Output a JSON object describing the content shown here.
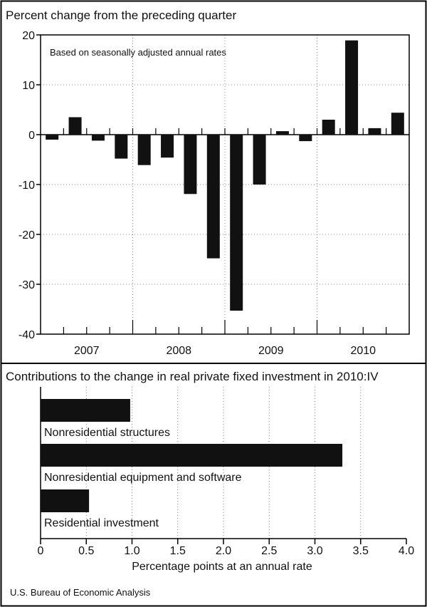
{
  "colors": {
    "bar": "#111111",
    "grid": "#888888",
    "frame": "#000000",
    "background": "#ffffff"
  },
  "source": "U.S. Bureau of Economic Analysis",
  "chart_data": [
    {
      "type": "bar",
      "title": "Percent change from the preceding quarter",
      "annotation": "Based on seasonally adjusted annual rates",
      "xlabel": "",
      "ylabel": "",
      "ylim": [
        -40,
        20
      ],
      "yticks": [
        20,
        10,
        0,
        -10,
        -20,
        -30,
        -40
      ],
      "ytick_labels": [
        "20",
        "10",
        "0",
        "-10",
        "-20",
        "-30",
        "-40"
      ],
      "year_labels": [
        "2007",
        "2008",
        "2009",
        "2010"
      ],
      "categories": [
        "2007:I",
        "2007:II",
        "2007:III",
        "2007:IV",
        "2008:I",
        "2008:II",
        "2008:III",
        "2008:IV",
        "2009:I",
        "2009:II",
        "2009:III",
        "2009:IV",
        "2010:I",
        "2010:II",
        "2010:III",
        "2010:IV"
      ],
      "values": [
        -1.0,
        3.5,
        -1.2,
        -4.8,
        -6.1,
        -4.6,
        -11.9,
        -24.8,
        -35.3,
        -10.0,
        0.7,
        -1.3,
        3.0,
        18.9,
        1.3,
        4.4
      ],
      "grid": true
    },
    {
      "type": "bar",
      "orientation": "horizontal",
      "title": "Contributions to the change in real private fixed investment in 2010:IV",
      "xlabel": "Percentage points at an annual rate",
      "ylabel": "",
      "xlim": [
        0,
        4.0
      ],
      "xticks": [
        0,
        0.5,
        1.0,
        1.5,
        2.0,
        2.5,
        3.0,
        3.5,
        4.0
      ],
      "xtick_labels": [
        "0",
        "0.5",
        "1.0",
        "1.5",
        "2.0",
        "2.5",
        "3.0",
        "3.5",
        "4.0"
      ],
      "categories": [
        "Nonresidential structures",
        "Nonresidential equipment and software",
        "Residential investment"
      ],
      "values": [
        0.98,
        3.3,
        0.53
      ],
      "grid": true
    }
  ]
}
